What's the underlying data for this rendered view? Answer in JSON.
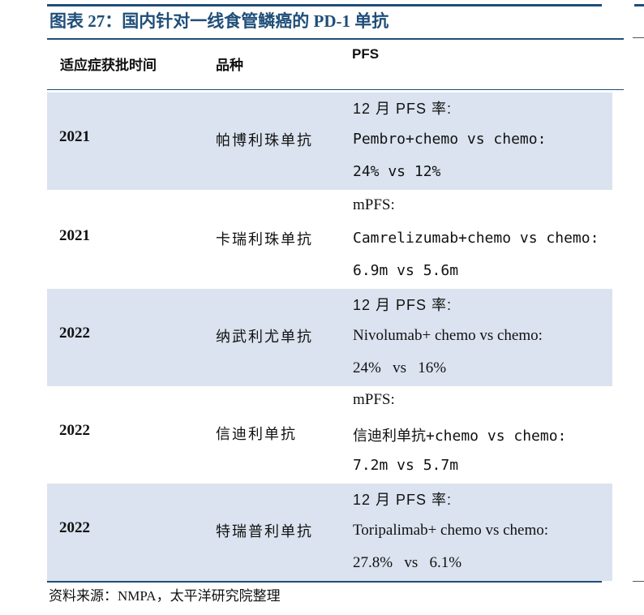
{
  "title": "图表 27：国内针对一线食管鳞癌的 PD-1 单抗",
  "headers": {
    "col1": "适应症获批时间",
    "col2": "品种",
    "col3": "PFS"
  },
  "rows": [
    {
      "year": "2021",
      "drug": "帕博利珠单抗",
      "pfs": [
        "12 月 PFS 率:",
        "Pembro+chemo vs chemo:",
        "24% vs 12%"
      ]
    },
    {
      "year": "2021",
      "drug": "卡瑞利珠单抗",
      "pfs": [
        "mPFS:",
        "Camrelizumab+chemo vs chemo:",
        "6.9m vs 5.6m"
      ]
    },
    {
      "year": "2022",
      "drug": "纳武利尤单抗",
      "pfs": [
        "12 月 PFS 率:",
        "Nivolumab+ chemo vs chemo:",
        "24%   vs   16%"
      ]
    },
    {
      "year": "2022",
      "drug": "信迪利单抗",
      "pfs": [
        "mPFS:",
        "信迪利单抗+chemo vs chemo:",
        "7.2m vs 5.7m"
      ]
    },
    {
      "year": "2022",
      "drug": "特瑞普利单抗",
      "pfs": [
        "12 月 PFS 率:",
        "Toripalimab+ chemo vs chemo:",
        "27.8%   vs   6.1%"
      ]
    }
  ],
  "source": "资料来源：NMPA，太平洋研究院整理",
  "colors": {
    "accent": "#1f4e79",
    "row_shade": "#dae3ef"
  }
}
